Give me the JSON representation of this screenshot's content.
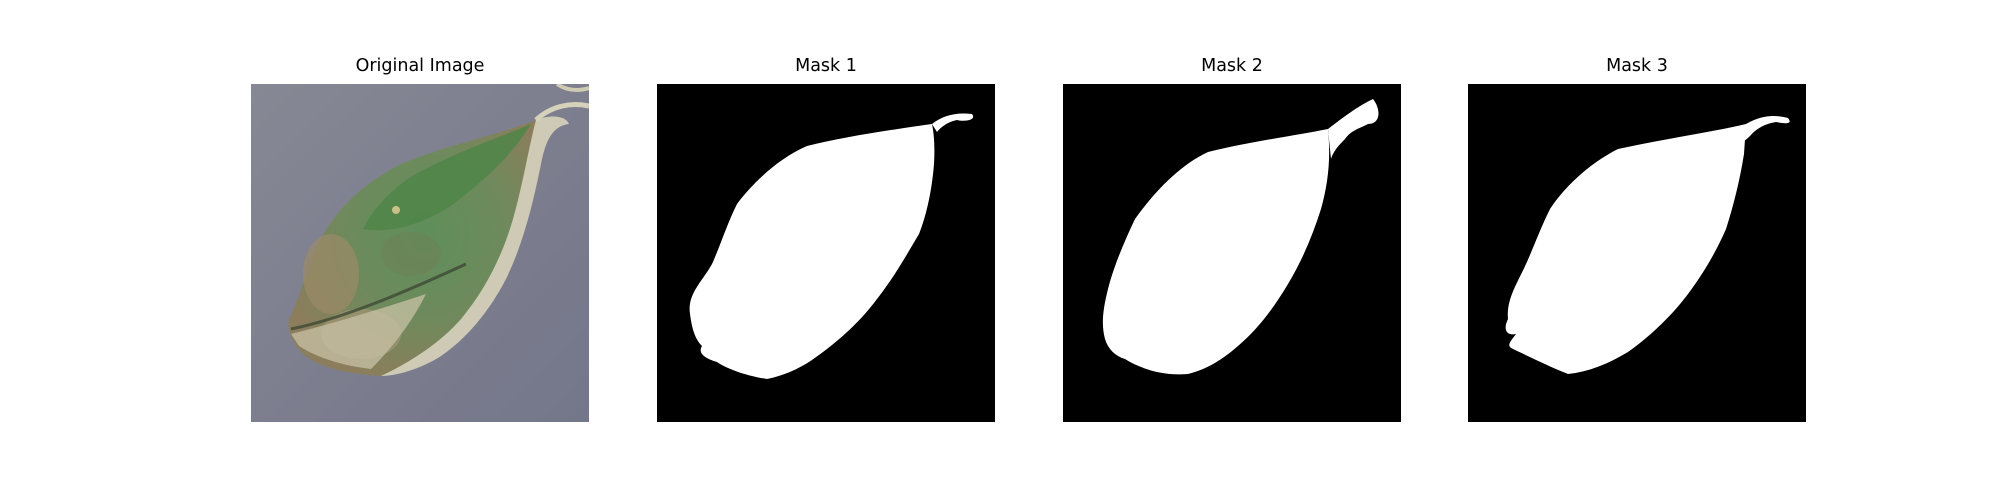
{
  "panels": [
    {
      "title": "Original Image",
      "kind": "photo"
    },
    {
      "title": "Mask 1",
      "kind": "mask"
    },
    {
      "title": "Mask 2",
      "kind": "mask"
    },
    {
      "title": "Mask 3",
      "kind": "mask"
    }
  ],
  "colors": {
    "background": "#ffffff",
    "mask_background": "#000000",
    "mask_foreground": "#ffffff",
    "photo_background": "#7d7f8c",
    "leaf_green": "#5c8a58",
    "leaf_brown": "#8a7a5a",
    "leaf_pale": "#d6d2bd"
  }
}
